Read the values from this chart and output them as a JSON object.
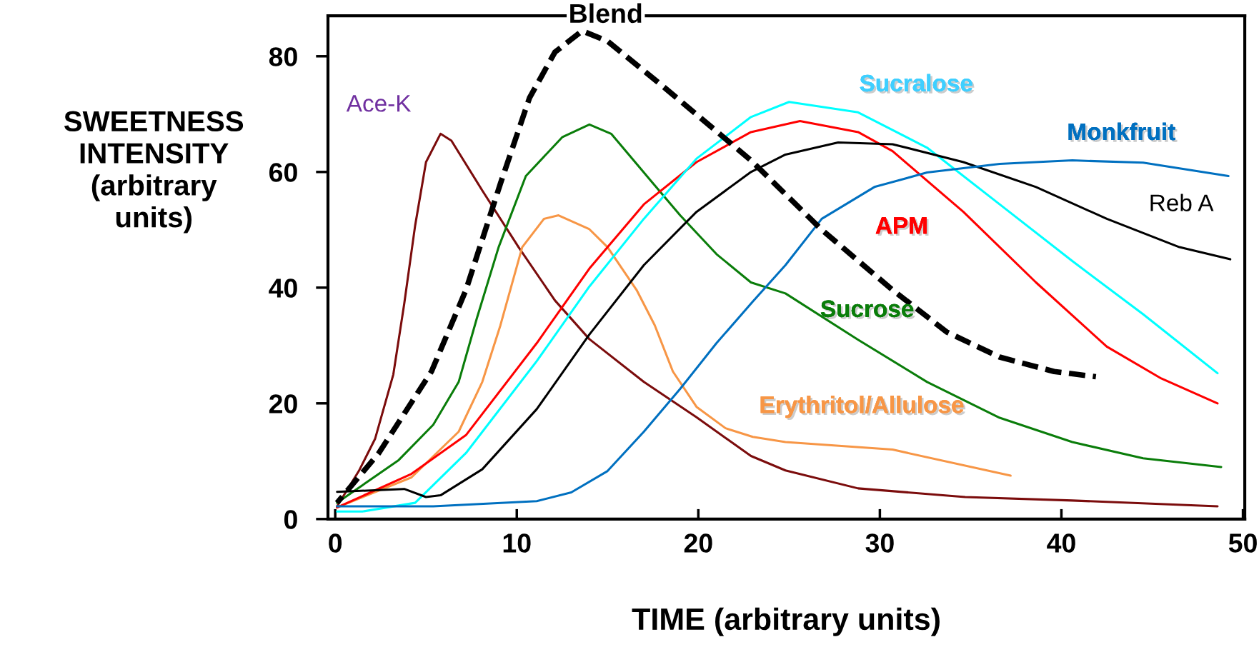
{
  "chart_data": {
    "type": "line",
    "title": "Blend",
    "xlabel": "TIME (arbitrary units)",
    "ylabel": "SWEETNESS\nINTENSITY\n(arbitrary\nunits)",
    "xlim": [
      -0.4,
      50.1
    ],
    "ylim": [
      0,
      87
    ],
    "xticks": [
      0,
      10,
      20,
      30,
      40,
      50
    ],
    "yticks": [
      0,
      20,
      40,
      60,
      80
    ],
    "grid": false,
    "legend": false,
    "marker": "none",
    "series": [
      {
        "name": "Ace-K",
        "color": "#7b0c0c",
        "x": [
          0.1,
          1.3,
          2.2,
          3.2,
          3.8,
          4.4,
          5.0,
          5.8,
          6.4,
          8.1,
          10.1,
          12.1,
          14.0,
          17.0,
          19.9,
          22.9,
          24.8,
          28.8,
          34.7,
          40.6,
          48.6
        ],
        "values": [
          2.2,
          8.3,
          13.9,
          25.0,
          37.2,
          50.7,
          61.7,
          66.6,
          65.4,
          56.8,
          47.0,
          37.8,
          31.1,
          23.7,
          17.6,
          10.9,
          8.4,
          5.3,
          3.8,
          3.2,
          2.2
        ]
      },
      {
        "name": "Sucrose",
        "color": "#0a7d0a",
        "x": [
          0.1,
          3.5,
          5.4,
          6.8,
          7.8,
          9.0,
          10.5,
          12.5,
          14.0,
          15.2,
          17.0,
          19.0,
          21.0,
          22.9,
          24.8,
          28.8,
          32.6,
          36.6,
          40.6,
          44.5,
          48.8
        ],
        "values": [
          2.8,
          10.2,
          16.3,
          23.7,
          34.7,
          47.0,
          59.3,
          66.0,
          68.2,
          66.6,
          59.9,
          52.5,
          45.8,
          40.9,
          39.0,
          31.0,
          23.7,
          17.5,
          13.3,
          10.5,
          9.0
        ]
      },
      {
        "name": "Erythritol/Allulose",
        "color": "#f79646",
        "x": [
          0.1,
          4.2,
          6.8,
          8.1,
          9.1,
          10.3,
          11.5,
          12.3,
          14.0,
          15.0,
          16.6,
          17.6,
          18.6,
          19.9,
          21.5,
          23.0,
          24.8,
          30.7,
          37.2
        ],
        "values": [
          2.0,
          7.2,
          15.1,
          23.7,
          33.5,
          47.0,
          51.9,
          52.5,
          50.1,
          47.0,
          39.6,
          33.5,
          25.5,
          19.4,
          15.7,
          14.2,
          13.3,
          12.0,
          7.5
        ]
      },
      {
        "name": "APM",
        "color": "#ff0000",
        "x": [
          0.1,
          4.2,
          7.2,
          11.1,
          14.0,
          17.0,
          19.9,
          22.9,
          25.6,
          28.8,
          30.7,
          34.6,
          38.6,
          42.5,
          45.5,
          48.6
        ],
        "values": [
          2.0,
          7.8,
          14.5,
          30.4,
          43.3,
          54.4,
          61.7,
          66.9,
          68.8,
          66.9,
          63.6,
          53.1,
          40.9,
          29.8,
          24.3,
          20.0
        ]
      },
      {
        "name": "Sucralose",
        "color": "#00ffff",
        "x": [
          0.1,
          1.5,
          4.4,
          7.2,
          11.1,
          14.0,
          17.0,
          19.9,
          22.9,
          25.0,
          28.8,
          32.6,
          36.6,
          40.6,
          44.5,
          48.6
        ],
        "values": [
          1.3,
          1.3,
          2.8,
          11.4,
          27.3,
          40.2,
          51.9,
          62.3,
          69.5,
          72.1,
          70.3,
          64.2,
          54.4,
          44.6,
          35.4,
          25.2
        ]
      },
      {
        "name": "Reb A",
        "color": "#000000",
        "x": [
          0.1,
          3.8,
          5.0,
          5.8,
          8.1,
          11.1,
          14.0,
          17.0,
          19.9,
          22.9,
          24.8,
          27.7,
          30.7,
          34.6,
          38.6,
          42.5,
          46.5,
          49.3
        ],
        "values": [
          4.7,
          5.2,
          3.8,
          4.1,
          8.6,
          19.0,
          31.9,
          43.9,
          53.1,
          60.0,
          63.0,
          65.1,
          64.8,
          61.7,
          57.4,
          51.9,
          47.0,
          44.9
        ]
      },
      {
        "name": "Monkfruit",
        "color": "#0070c0",
        "x": [
          0.1,
          5.4,
          11.1,
          13.0,
          15.0,
          17.0,
          19.0,
          21.0,
          23.0,
          24.8,
          26.8,
          29.7,
          32.6,
          36.6,
          40.6,
          44.5,
          49.2
        ],
        "values": [
          2.2,
          2.2,
          3.1,
          4.6,
          8.3,
          15.1,
          22.5,
          30.4,
          37.6,
          43.9,
          51.9,
          57.4,
          59.9,
          61.4,
          62.0,
          61.6,
          59.3
        ]
      },
      {
        "color": "#000000",
        "line_style": "dashed",
        "x": [
          0.1,
          2.4,
          5.3,
          7.2,
          9.1,
          10.7,
          12.1,
          13.6,
          15.0,
          17.9,
          20.9,
          22.9,
          26.8,
          30.7,
          33.7,
          36.6,
          39.6,
          41.9
        ],
        "values": [
          2.8,
          11.4,
          25.5,
          39.6,
          58.0,
          72.8,
          80.7,
          84.4,
          82.6,
          75.2,
          67.3,
          62.0,
          50.0,
          39.6,
          32.3,
          28.0,
          25.5,
          24.6
        ]
      }
    ]
  }
}
